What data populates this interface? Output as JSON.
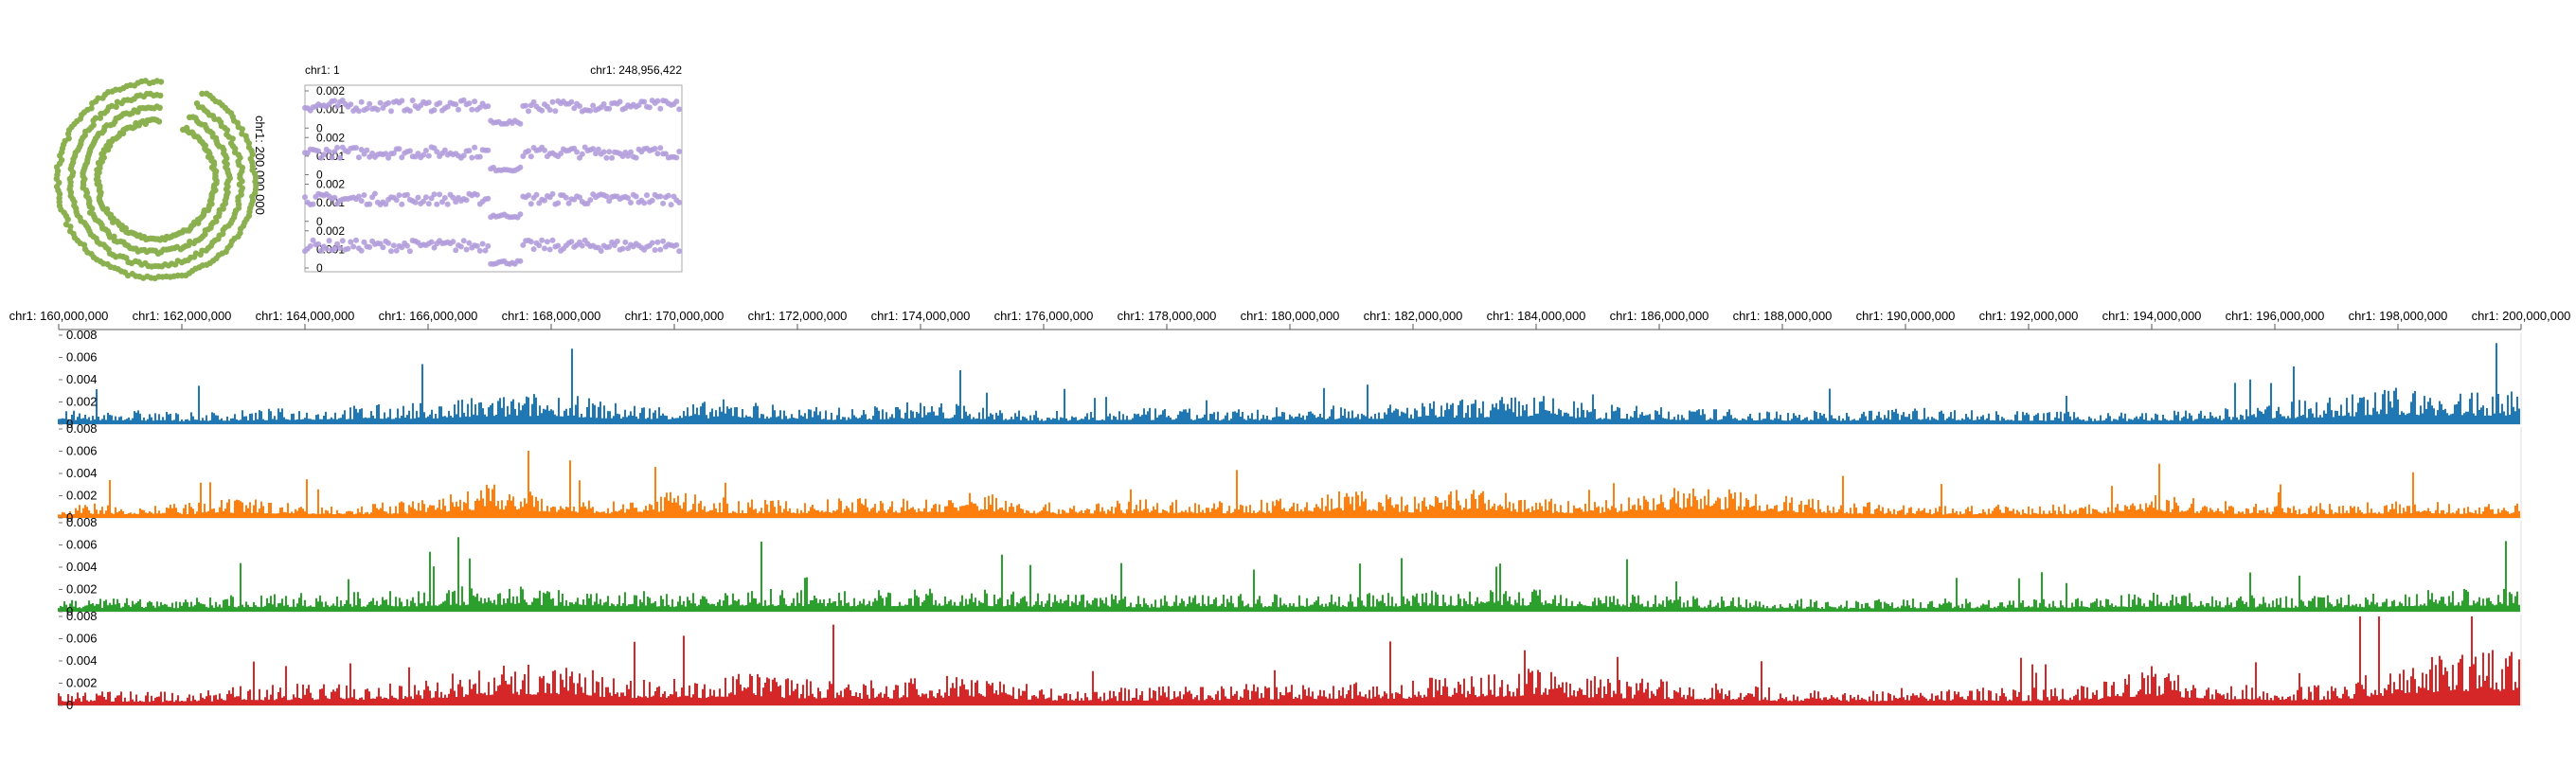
{
  "colors": {
    "circular": "#8ab04f",
    "overview_points": "#b39ddb",
    "tracks": [
      "#1f77b4",
      "#ff7f0e",
      "#2ca02c",
      "#d62728"
    ],
    "axis": "#555555",
    "grid": "#dddddd"
  },
  "chart_data": [
    {
      "type": "line",
      "name": "circular-overview",
      "rings": 4,
      "axis_label": "chr1: 200,000,000"
    },
    {
      "type": "scatter",
      "name": "linear-overview",
      "start_label": "chr1: 1",
      "end_label": "chr1: 248,956,422",
      "xlim": [
        1,
        248956422
      ],
      "tracks": 4,
      "ylim": [
        0,
        0.002
      ],
      "yticks": [
        "0.002",
        "0.001",
        "0"
      ],
      "gap_region": [
        121000000,
        144000000
      ]
    },
    {
      "type": "bar",
      "name": "detail-tracks",
      "xlim": [
        160000000,
        200000000
      ],
      "xticks": [
        {
          "value": 160000000,
          "label": "chr1: 160,000,000"
        },
        {
          "value": 162000000,
          "label": "chr1: 162,000,000"
        },
        {
          "value": 164000000,
          "label": "chr1: 164,000,000"
        },
        {
          "value": 166000000,
          "label": "chr1: 166,000,000"
        },
        {
          "value": 168000000,
          "label": "chr1: 168,000,000"
        },
        {
          "value": 170000000,
          "label": "chr1: 170,000,000"
        },
        {
          "value": 172000000,
          "label": "chr1: 172,000,000"
        },
        {
          "value": 174000000,
          "label": "chr1: 174,000,000"
        },
        {
          "value": 176000000,
          "label": "chr1: 176,000,000"
        },
        {
          "value": 178000000,
          "label": "chr1: 178,000,000"
        },
        {
          "value": 180000000,
          "label": "chr1: 180,000,000"
        },
        {
          "value": 182000000,
          "label": "chr1: 182,000,000"
        },
        {
          "value": 184000000,
          "label": "chr1: 184,000,000"
        },
        {
          "value": 186000000,
          "label": "chr1: 186,000,000"
        },
        {
          "value": 188000000,
          "label": "chr1: 188,000,000"
        },
        {
          "value": 190000000,
          "label": "chr1: 190,000,000"
        },
        {
          "value": 192000000,
          "label": "chr1: 192,000,000"
        },
        {
          "value": 194000000,
          "label": "chr1: 194,000,000"
        },
        {
          "value": 196000000,
          "label": "chr1: 196,000,000"
        },
        {
          "value": 198000000,
          "label": "chr1: 198,000,000"
        },
        {
          "value": 200000000,
          "label": "chr1: 200,000,000"
        }
      ],
      "ylim": [
        0,
        0.008
      ],
      "yticks": [
        "0.008",
        "0.006",
        "0.004",
        "0.002",
        "0"
      ],
      "series": [
        {
          "values": [
            0.0012,
            0.0014,
            0.0011,
            0.0013,
            0.0016,
            0.0018,
            0.002,
            0.0026,
            0.003,
            0.002,
            0.0018,
            0.0024,
            0.0016,
            0.0015,
            0.0022,
            0.0017,
            0.0012,
            0.0014,
            0.0015,
            0.0013,
            0.0016,
            0.0018,
            0.002,
            0.0024,
            0.0028,
            0.0018,
            0.0016,
            0.0014,
            0.0013,
            0.0012,
            0.0016,
            0.0014,
            0.0012,
            0.0011,
            0.0012,
            0.0013,
            0.002,
            0.0026,
            0.0034,
            0.003
          ]
        },
        {
          "values": [
            0.0012,
            0.0014,
            0.0013,
            0.0018,
            0.0014,
            0.0013,
            0.0018,
            0.0032,
            0.0022,
            0.0016,
            0.0024,
            0.0017,
            0.0016,
            0.0019,
            0.0018,
            0.0026,
            0.0014,
            0.0015,
            0.0018,
            0.0016,
            0.0018,
            0.0028,
            0.0019,
            0.003,
            0.0018,
            0.0016,
            0.0028,
            0.003,
            0.0022,
            0.0016,
            0.0012,
            0.0012,
            0.0012,
            0.0014,
            0.0022,
            0.0016,
            0.0013,
            0.0014,
            0.0016,
            0.0014
          ]
        },
        {
          "values": [
            0.0012,
            0.0014,
            0.0013,
            0.0016,
            0.0017,
            0.0018,
            0.002,
            0.0026,
            0.0022,
            0.002,
            0.0018,
            0.0022,
            0.002,
            0.0019,
            0.0021,
            0.002,
            0.0017,
            0.0016,
            0.0015,
            0.0016,
            0.0016,
            0.0018,
            0.0019,
            0.002,
            0.0022,
            0.0018,
            0.0016,
            0.0014,
            0.0012,
            0.0011,
            0.0012,
            0.0013,
            0.0013,
            0.0015,
            0.0018,
            0.0016,
            0.0014,
            0.0015,
            0.0018,
            0.0022
          ]
        },
        {
          "values": [
            0.0012,
            0.0014,
            0.0012,
            0.0018,
            0.002,
            0.002,
            0.0024,
            0.0036,
            0.004,
            0.0028,
            0.0024,
            0.003,
            0.0026,
            0.0024,
            0.0026,
            0.003,
            0.0018,
            0.0016,
            0.0018,
            0.002,
            0.0022,
            0.0024,
            0.0024,
            0.003,
            0.0034,
            0.0026,
            0.0024,
            0.002,
            0.0016,
            0.0014,
            0.0016,
            0.0018,
            0.0016,
            0.0018,
            0.0036,
            0.0022,
            0.0018,
            0.002,
            0.004,
            0.0052
          ]
        }
      ]
    }
  ]
}
